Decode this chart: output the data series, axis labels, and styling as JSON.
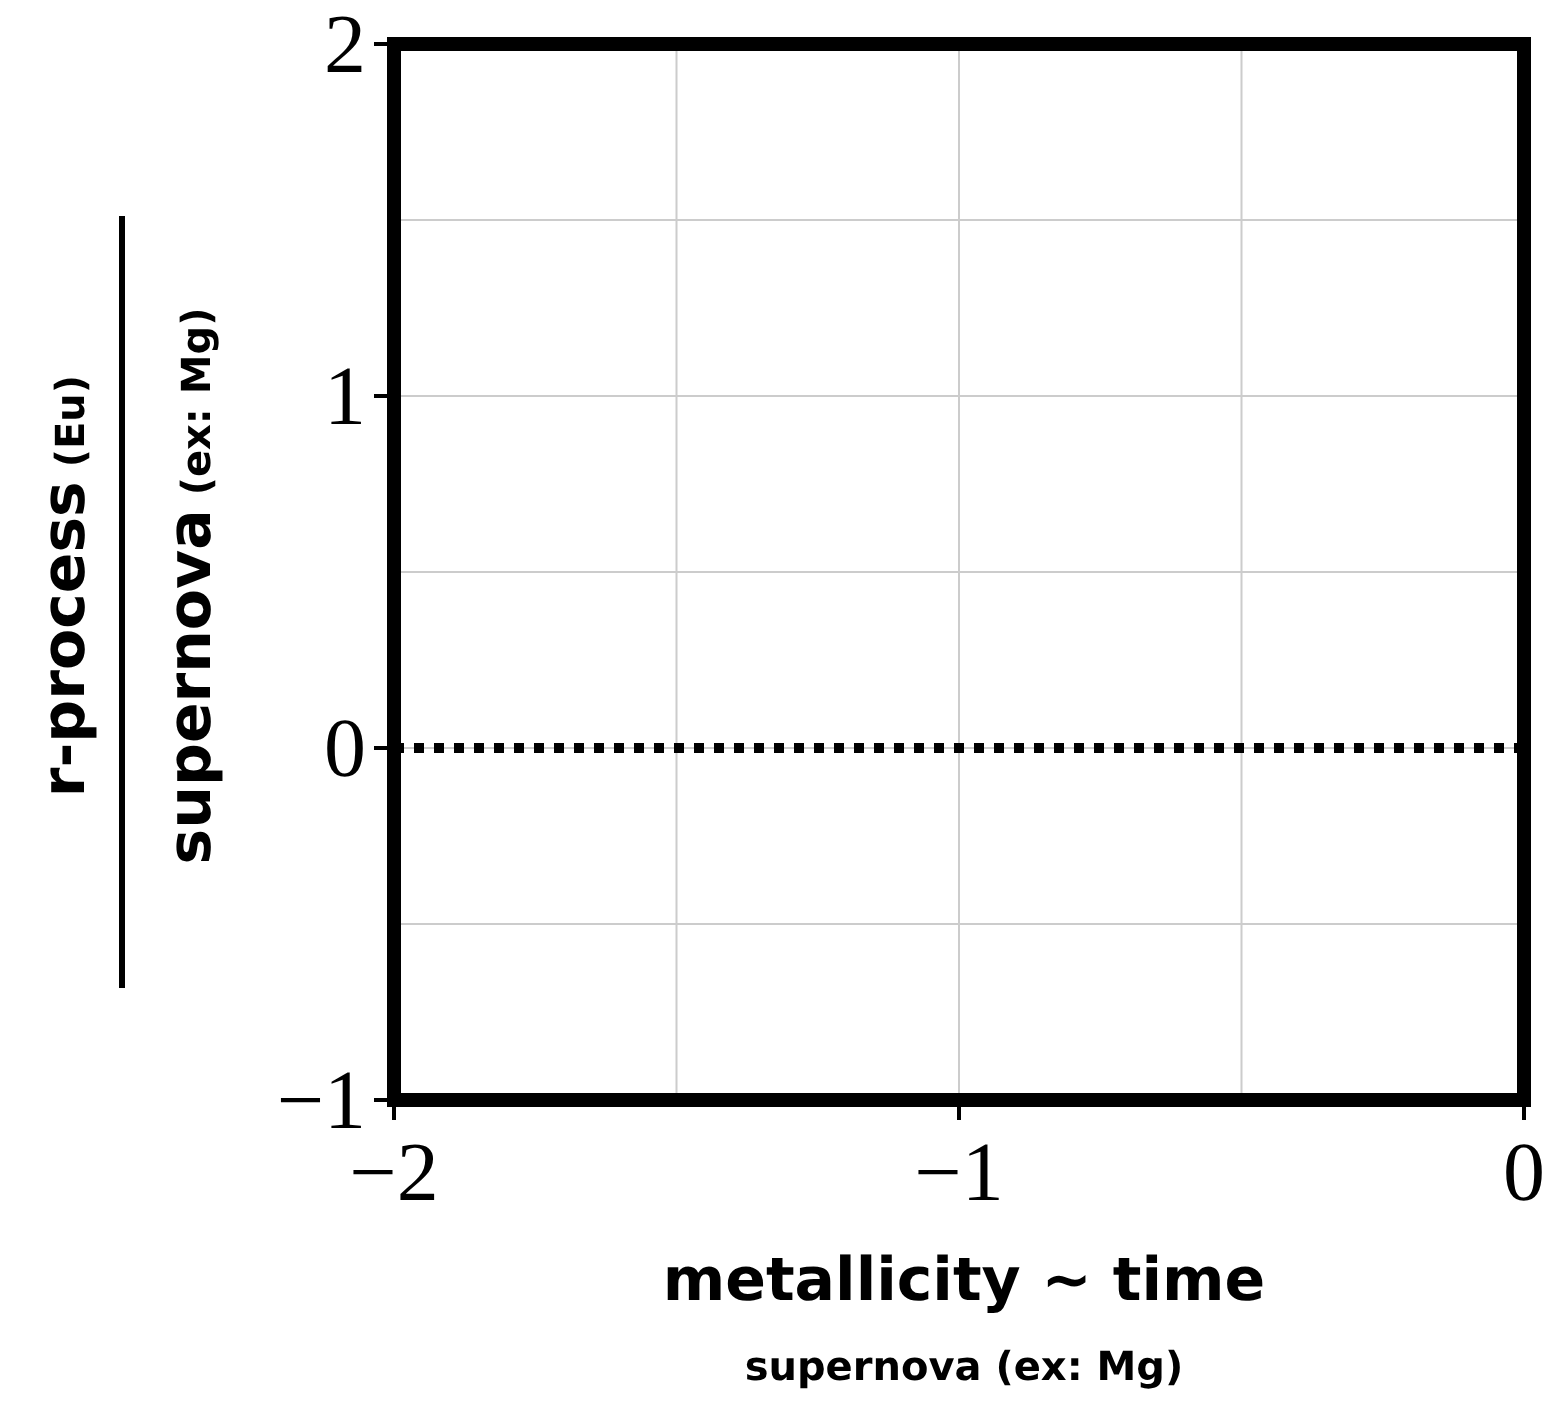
{
  "chart_data": {
    "type": "line",
    "xlabel": "metallicity ~ time",
    "ylabel": "r-process (Eu)",
    "annotations": [
      "supernova (ex: Mg)",
      "supernova (ex: Mg)"
    ],
    "xlim": [
      -2,
      0
    ],
    "ylim": [
      -1,
      2
    ],
    "xticks": [
      -2,
      {
        "value": -1.5,
        "label": null
      },
      -1,
      {
        "value": -0.5,
        "label": null
      },
      0
    ],
    "yticks": [
      -1,
      {
        "value": -0.5,
        "label": null
      },
      0,
      {
        "value": 0.5,
        "label": null
      },
      1,
      {
        "value": 1.5,
        "label": null
      },
      2
    ],
    "grid": true,
    "ref_lines": [
      {
        "axis": "y",
        "value": 0,
        "line_style": "dotted",
        "color": "#000000"
      }
    ]
  }
}
